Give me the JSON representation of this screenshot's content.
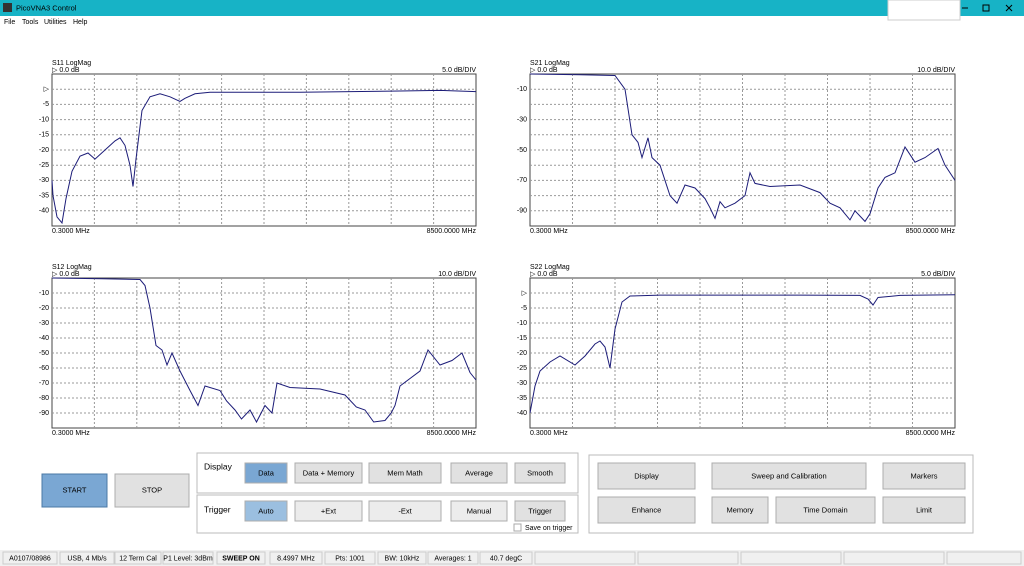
{
  "window": {
    "title": "PicoVNA3 Control"
  },
  "menu": [
    "File",
    "Tools",
    "Utilities",
    "Help"
  ],
  "chart_data": [
    {
      "type": "line",
      "title": "S11 LogMag",
      "reference": "▷ 0.0 dB",
      "scale": "5.0 dB/DIV",
      "grid": true,
      "x": [
        0.3,
        20,
        100,
        200,
        281,
        401,
        561,
        722,
        862,
        1062,
        1263,
        1363,
        1463,
        1564,
        1624,
        1684,
        1804,
        1965,
        2165,
        2366,
        2566,
        2666,
        2867,
        3167,
        4972,
        6976,
        7778,
        8500
      ],
      "series": [
        {
          "color": "#1c1c78",
          "values": [
            -30,
            -35,
            -42,
            -44,
            -36,
            -27,
            -22,
            -21,
            -23,
            -20,
            -17,
            -16,
            -18.5,
            -25,
            -32,
            -23,
            -7,
            -2.5,
            -1.5,
            -2.5,
            -4,
            -3,
            -1.5,
            -1,
            -1,
            -0.6,
            -0.4,
            -0.8
          ]
        }
      ],
      "xlim": [
        0.3,
        8500
      ],
      "xticks": [
        {
          "value": 0.3,
          "label": "0.3000 MHz"
        },
        {
          "value": 8500,
          "label": "8500.0000 MHz"
        }
      ],
      "ylim": [
        -45,
        5
      ],
      "yticks": [
        {
          "value": 0,
          "label": "▷"
        },
        -5,
        -10,
        -15,
        -20,
        -25,
        -30,
        -35,
        -40
      ]
    },
    {
      "type": "line",
      "title": "S21 LogMag",
      "reference": "▷ 0.0 dB",
      "scale": "10.0 dB/DIV",
      "grid": true,
      "x": [
        0.3,
        1000,
        1700,
        1900,
        2040,
        2160,
        2240,
        2360,
        2440,
        2600,
        2800,
        2940,
        3100,
        3300,
        3500,
        3600,
        3700,
        3800,
        3900,
        4100,
        4300,
        4400,
        4500,
        4800,
        5400,
        5800,
        6000,
        6200,
        6400,
        6500,
        6700,
        6800,
        6960,
        7100,
        7300,
        7500,
        7700,
        7900,
        8160,
        8300,
        8500
      ],
      "series": [
        {
          "color": "#1c1c78",
          "values": [
            0,
            -0.5,
            -1,
            -10,
            -40,
            -45,
            -55,
            -42,
            -55,
            -60,
            -80,
            -85,
            -73,
            -75,
            -82,
            -88,
            -95,
            -84,
            -88,
            -85,
            -80,
            -65,
            -72,
            -74,
            -73,
            -78,
            -85,
            -88,
            -96,
            -90,
            -97,
            -92,
            -75,
            -68,
            -65,
            -48,
            -58,
            -55,
            -49,
            -60,
            -70
          ]
        }
      ],
      "xlim": [
        0.3,
        8500
      ],
      "xticks": [
        {
          "value": 0.3,
          "label": "0.3000 MHz"
        },
        {
          "value": 8500,
          "label": "8500.0000 MHz"
        }
      ],
      "ylim": [
        -100,
        0
      ],
      "yticks": [
        -10,
        -30,
        -50,
        -70,
        -90
      ]
    },
    {
      "type": "line",
      "title": "S12 LogMag",
      "reference": "▷ 0.0 dB",
      "scale": "10.0 dB/DIV",
      "grid": true,
      "x": [
        0.3,
        1000,
        1764,
        1864,
        1965,
        2085,
        2205,
        2305,
        2406,
        2566,
        2767,
        2927,
        3067,
        3368,
        3500,
        3669,
        3800,
        3970,
        4100,
        4271,
        4411,
        4511,
        4771,
        5373,
        5874,
        6100,
        6275,
        6450,
        6676,
        6800,
        6876,
        6976,
        7177,
        7377,
        7538,
        7778,
        8019,
        8220,
        8380,
        8500
      ],
      "series": [
        {
          "color": "#1c1c78",
          "values": [
            0,
            -0.5,
            -1,
            -5,
            -20,
            -45,
            -48,
            -58,
            -50,
            -62,
            -75,
            -85,
            -72,
            -75,
            -82,
            -88,
            -94,
            -88,
            -96,
            -85,
            -90,
            -70,
            -73,
            -74,
            -78,
            -86,
            -88,
            -96,
            -95,
            -90,
            -85,
            -72,
            -67,
            -62,
            -48,
            -58,
            -55,
            -50,
            -63,
            -68
          ]
        }
      ],
      "xlim": [
        0.3,
        8500
      ],
      "xticks": [
        {
          "value": 0.3,
          "label": "0.3000 MHz"
        },
        {
          "value": 8500,
          "label": "8500.0000 MHz"
        }
      ],
      "ylim": [
        -100,
        0
      ],
      "yticks": [
        -10,
        -20,
        -30,
        -40,
        -50,
        -60,
        -70,
        -80,
        -90
      ]
    },
    {
      "type": "line",
      "title": "S22 LogMag",
      "reference": "▷ 0.0 dB",
      "scale": "5.0 dB/DIV",
      "grid": true,
      "x": [
        0.3,
        100,
        200,
        400,
        600,
        900,
        1100,
        1300,
        1400,
        1500,
        1600,
        1700,
        1840,
        2000,
        2600,
        5400,
        6600,
        6760,
        6860,
        6960,
        7400,
        8500
      ],
      "series": [
        {
          "color": "#1c1c78",
          "values": [
            -40,
            -31,
            -26,
            -23,
            -21,
            -24,
            -21,
            -17,
            -16,
            -18,
            -25,
            -12,
            -3,
            -1,
            -0.7,
            -0.7,
            -0.8,
            -2,
            -4,
            -1.5,
            -0.8,
            -0.6
          ]
        }
      ],
      "xlim": [
        0.3,
        8500
      ],
      "xticks": [
        {
          "value": 0.3,
          "label": "0.3000 MHz"
        },
        {
          "value": 8500,
          "label": "8500.0000 MHz"
        }
      ],
      "ylim": [
        -45,
        5
      ],
      "yticks": [
        {
          "value": 0,
          "label": "▷"
        },
        -5,
        -10,
        -15,
        -20,
        -25,
        -30,
        -35,
        -40
      ]
    }
  ],
  "run_buttons": [
    "START",
    "STOP"
  ],
  "display_group": {
    "label": "Display",
    "buttons": [
      "Data",
      "Data + Memory",
      "Mem Math",
      "Average",
      "Smooth"
    ]
  },
  "trigger_group": {
    "label": "Trigger",
    "buttons": [
      "Auto",
      "+Ext",
      "-Ext",
      "Manual",
      "Trigger"
    ],
    "checkbox": "Save on trigger"
  },
  "menu_buttons": [
    "Display",
    "Sweep and Calibration",
    "Markers",
    "Enhance",
    "Memory",
    "Time Domain",
    "Limit"
  ],
  "status_bar": [
    "A0107/08986",
    "USB, 4 Mb/s",
    "12 Term Cal",
    "P1 Level: 3dBm",
    "SWEEP ON",
    "8.4997 MHz",
    "Pts: 1001",
    "BW: 10kHz",
    "Averages: 1",
    "40.7 degC"
  ]
}
